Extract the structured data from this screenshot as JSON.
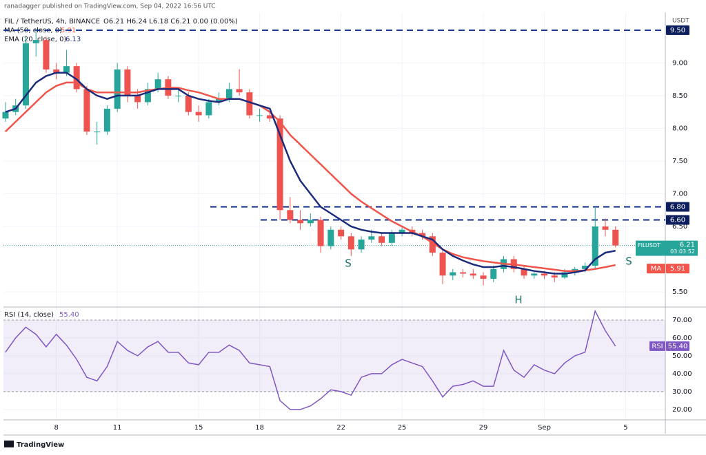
{
  "header": "ranadagger published on TradingView.com, Sep 04, 2022 16:56 UTC",
  "chart_data": [
    {
      "type": "candlestick",
      "symbol": "FIL / TetherUS, 4h, BINANCE",
      "ohlc_text": "O6.21 H6.24 L6.18 C6.21 0.00 (0.00%)",
      "unit": "USDT",
      "up_color": "#26a69a",
      "down_color": "#ef5350",
      "open": [
        8.15,
        8.25,
        8.35,
        9.3,
        9.35,
        8.9,
        8.85,
        8.95,
        8.6,
        7.95,
        7.95,
        8.3,
        8.9,
        8.5,
        8.4,
        8.6,
        8.75,
        8.5,
        8.5,
        8.25,
        8.2,
        8.4,
        8.45,
        8.6,
        8.55,
        8.2,
        8.2,
        8.15,
        6.75,
        6.6,
        6.55,
        6.6,
        6.2,
        6.45,
        6.35,
        6.15,
        6.3,
        6.35,
        6.25,
        6.4,
        6.45,
        6.4,
        6.35,
        6.1,
        5.75,
        5.8,
        5.78,
        5.75,
        5.7,
        5.85,
        6.0,
        5.85,
        5.75,
        5.78,
        5.75,
        5.72,
        5.8,
        5.85,
        5.9,
        6.5,
        6.45
      ],
      "high": [
        8.4,
        8.45,
        9.4,
        9.5,
        9.4,
        9.0,
        9.2,
        9.0,
        8.65,
        8.1,
        8.35,
        9.0,
        8.95,
        8.6,
        8.7,
        8.85,
        8.8,
        8.6,
        8.55,
        8.35,
        8.45,
        8.55,
        8.7,
        8.9,
        8.6,
        8.3,
        8.25,
        8.2,
        6.95,
        6.75,
        6.7,
        6.65,
        6.5,
        6.5,
        6.4,
        6.35,
        6.45,
        6.4,
        6.45,
        6.5,
        6.5,
        6.45,
        6.4,
        6.15,
        5.85,
        5.85,
        5.85,
        5.8,
        5.9,
        6.05,
        6.05,
        5.9,
        5.82,
        5.82,
        5.8,
        5.85,
        5.88,
        5.95,
        6.8,
        6.62,
        6.5
      ],
      "low": [
        8.1,
        8.2,
        8.3,
        9.1,
        8.85,
        8.75,
        8.8,
        8.55,
        7.9,
        7.75,
        7.9,
        8.25,
        8.4,
        8.3,
        8.35,
        8.55,
        8.45,
        8.4,
        8.2,
        8.1,
        8.15,
        8.35,
        8.4,
        8.5,
        8.15,
        8.1,
        8.1,
        6.6,
        6.55,
        6.45,
        6.5,
        6.1,
        6.15,
        6.3,
        6.05,
        6.1,
        6.25,
        6.2,
        6.2,
        6.35,
        6.35,
        6.3,
        6.05,
        5.62,
        5.68,
        5.72,
        5.7,
        5.6,
        5.65,
        5.8,
        5.8,
        5.7,
        5.7,
        5.7,
        5.65,
        5.7,
        5.75,
        5.8,
        5.85,
        6.35,
        6.18
      ],
      "close": [
        8.25,
        8.35,
        9.3,
        9.35,
        8.9,
        8.85,
        8.95,
        8.6,
        7.95,
        7.95,
        8.3,
        8.9,
        8.5,
        8.4,
        8.6,
        8.75,
        8.5,
        8.5,
        8.25,
        8.2,
        8.4,
        8.45,
        8.6,
        8.55,
        8.2,
        8.2,
        8.15,
        6.75,
        6.6,
        6.55,
        6.6,
        6.2,
        6.45,
        6.35,
        6.15,
        6.3,
        6.35,
        6.25,
        6.4,
        6.45,
        6.4,
        6.35,
        6.1,
        5.75,
        5.8,
        5.78,
        5.75,
        5.7,
        5.85,
        6.0,
        5.85,
        5.75,
        5.78,
        5.75,
        5.72,
        5.8,
        5.85,
        5.9,
        6.5,
        6.45,
        6.21
      ],
      "series": [
        {
          "name": "MA (50, close, 0)",
          "tag": "MA",
          "value_label": "5.91",
          "color": "#f0544a",
          "values": [
            7.95,
            8.1,
            8.25,
            8.4,
            8.55,
            8.65,
            8.7,
            8.7,
            8.6,
            8.55,
            8.55,
            8.55,
            8.55,
            8.55,
            8.58,
            8.6,
            8.62,
            8.62,
            8.58,
            8.55,
            8.5,
            8.45,
            8.45,
            8.45,
            8.4,
            8.35,
            8.25,
            8.1,
            7.9,
            7.75,
            7.6,
            7.45,
            7.3,
            7.15,
            7.0,
            6.88,
            6.78,
            6.68,
            6.58,
            6.5,
            6.42,
            6.35,
            6.25,
            6.15,
            6.08,
            6.03,
            6.0,
            5.97,
            5.95,
            5.93,
            5.92,
            5.9,
            5.88,
            5.86,
            5.84,
            5.82,
            5.82,
            5.83,
            5.85,
            5.88,
            5.91
          ]
        },
        {
          "name": "EMA (20, close, 0)",
          "tag": "EMA",
          "value_label": "6.13",
          "color": "#1c2b7a",
          "values": [
            8.25,
            8.3,
            8.5,
            8.7,
            8.8,
            8.85,
            8.85,
            8.75,
            8.6,
            8.5,
            8.45,
            8.5,
            8.5,
            8.5,
            8.55,
            8.6,
            8.6,
            8.6,
            8.5,
            8.45,
            8.42,
            8.4,
            8.45,
            8.45,
            8.4,
            8.35,
            8.3,
            7.9,
            7.5,
            7.2,
            7.0,
            6.8,
            6.7,
            6.6,
            6.5,
            6.45,
            6.42,
            6.4,
            6.4,
            6.4,
            6.4,
            6.35,
            6.3,
            6.15,
            6.05,
            5.98,
            5.92,
            5.88,
            5.88,
            5.9,
            5.88,
            5.85,
            5.82,
            5.8,
            5.78,
            5.78,
            5.8,
            5.83,
            6.0,
            6.1,
            6.13
          ]
        }
      ],
      "levels": [
        {
          "value": 9.5,
          "label": "9.50"
        },
        {
          "value": 6.8,
          "label": "6.80"
        },
        {
          "value": 6.6,
          "label": "6.60"
        }
      ],
      "last": {
        "symbol": "FILUSDT",
        "value": 6.21,
        "countdown": "03:03:52"
      },
      "annotations": [
        "S",
        "H",
        "S"
      ],
      "ylim": [
        5.28,
        9.73
      ],
      "yticks": [
        {
          "value": 5.5,
          "label": "5.50"
        },
        {
          "value": 6.5,
          "label": "6.50"
        },
        {
          "value": 7,
          "label": "7.00"
        },
        {
          "value": 7.5,
          "label": "7.50"
        },
        {
          "value": 8,
          "label": "8.00"
        },
        {
          "value": 8.5,
          "label": "8.50"
        },
        {
          "value": 9,
          "label": "9.00"
        }
      ],
      "xlim": [
        -0.2,
        64.9
      ],
      "xticks": [
        {
          "value": 5,
          "label": "8"
        },
        {
          "value": 11,
          "label": "11"
        },
        {
          "value": 19,
          "label": "15"
        },
        {
          "value": 25,
          "label": "18"
        },
        {
          "value": 33,
          "label": "22"
        },
        {
          "value": 39,
          "label": "25"
        },
        {
          "value": 47,
          "label": "29"
        },
        {
          "value": 53,
          "label": "Sep"
        },
        {
          "value": 61,
          "label": "5"
        }
      ]
    },
    {
      "type": "line",
      "name": "RSI (14, close)",
      "tag": "RSI",
      "value_label": "55.40",
      "color": "#7e57c2",
      "values": [
        52,
        60,
        66,
        62,
        55,
        62,
        56,
        48,
        38,
        36,
        44,
        58,
        53,
        50,
        55,
        58,
        52,
        52,
        46,
        45,
        52,
        52,
        56,
        53,
        46,
        45,
        44,
        25,
        20,
        20,
        22,
        26,
        31,
        30,
        28,
        38,
        40,
        40,
        45,
        48,
        46,
        44,
        36,
        27,
        33,
        34,
        36,
        33,
        33,
        53,
        42,
        38,
        45,
        42,
        40,
        46,
        50,
        52,
        75,
        64,
        55.4
      ],
      "bands": [
        30,
        70
      ],
      "ylim": [
        14.2,
        76.9
      ],
      "yticks": [
        {
          "value": 20,
          "label": "20.00"
        },
        {
          "value": 30,
          "label": "30.00"
        },
        {
          "value": 40,
          "label": "40.00"
        },
        {
          "value": 50,
          "label": "50.00"
        },
        {
          "value": 60,
          "label": "60.00"
        },
        {
          "value": 70,
          "label": "70.00"
        }
      ]
    }
  ],
  "footer": "TradingView"
}
